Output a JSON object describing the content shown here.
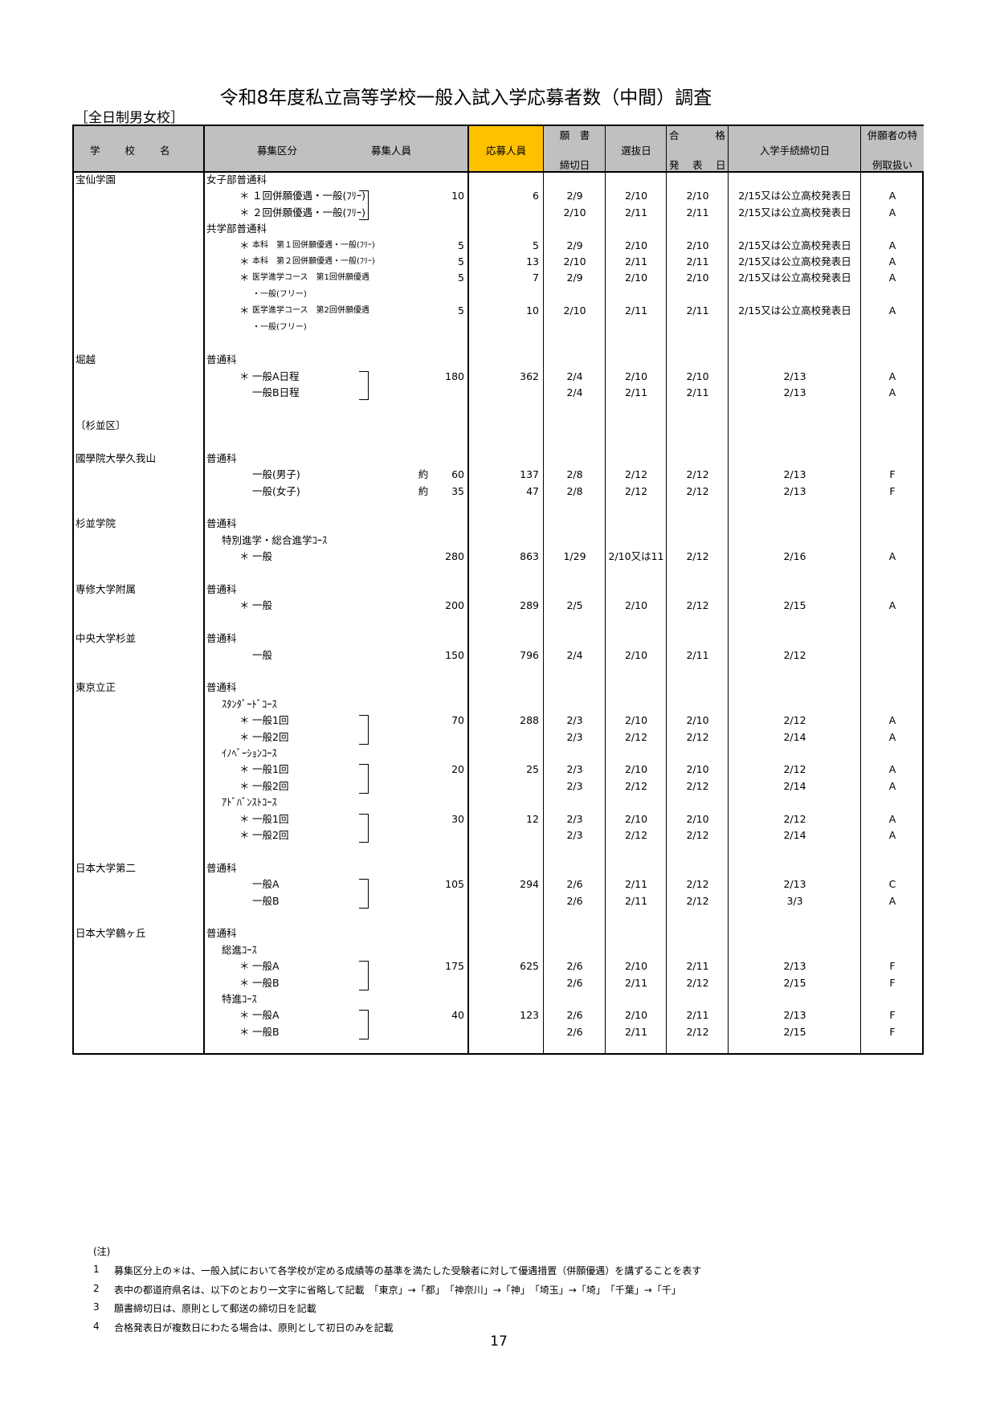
{
  "title": "令和8年度私立高等学校一般入試入学応募者数（中間）調査",
  "subtitle": "［全日制男女校］",
  "header": {
    "school": "学　　校　　名",
    "kubun": "募集区分",
    "capacity": "募集人員",
    "applicants": "応募人員",
    "deadline_top": "願　書",
    "deadline_bottom": "締切日",
    "exam": "選抜日",
    "announce_top_left": "合",
    "announce_top_right": "格",
    "announce_bottom": "発　表　日",
    "procedure": "入学手続締切日",
    "special_top": "併願者の特",
    "special_bottom": "例取扱い"
  },
  "colors": {
    "header_bg": "#c0c0c0",
    "applicants_header_bg": "#ffc000"
  },
  "rows": [
    {
      "school": "宝仙学園",
      "label": "女子部普通科",
      "t": "dept"
    },
    {
      "t": "item",
      "star": "＊",
      "label": "１回併願優遇・一般(ﾌﾘｰ)",
      "bracket": true,
      "cap": "10",
      "app": "6",
      "dl": "2/9",
      "ex": "2/10",
      "ann": "2/10",
      "proc": "2/15又は公立高校発表日",
      "sp": "A"
    },
    {
      "t": "item",
      "star": "＊",
      "label": "２回併願優遇・一般(ﾌﾘｰ)",
      "dl": "2/10",
      "ex": "2/11",
      "ann": "2/11",
      "proc": "2/15又は公立高校発表日",
      "sp": "A"
    },
    {
      "label": "共学部普通科",
      "t": "dept"
    },
    {
      "t": "item",
      "star": "＊",
      "label": "本科　第１回併願優遇・一般(ﾌﾘｰ)",
      "cap": "5",
      "app": "5",
      "dl": "2/9",
      "ex": "2/10",
      "ann": "2/10",
      "proc": "2/15又は公立高校発表日",
      "sp": "A"
    },
    {
      "t": "item",
      "star": "＊",
      "label": "本科　第２回併願優遇・一般(ﾌﾘｰ)",
      "cap": "5",
      "app": "13",
      "dl": "2/10",
      "ex": "2/11",
      "ann": "2/11",
      "proc": "2/15又は公立高校発表日",
      "sp": "A"
    },
    {
      "t": "item",
      "star": "＊",
      "label": "医学進学コース　第1回併願優遇",
      "cap": "5",
      "app": "7",
      "dl": "2/9",
      "ex": "2/10",
      "ann": "2/10",
      "proc": "2/15又は公立高校発表日",
      "sp": "A"
    },
    {
      "t": "item",
      "label": "・一般(フリー)"
    },
    {
      "t": "item",
      "star": "＊",
      "label": "医学進学コース　第2回併願優遇",
      "cap": "5",
      "app": "10",
      "dl": "2/10",
      "ex": "2/11",
      "ann": "2/11",
      "proc": "2/15又は公立高校発表日",
      "sp": "A"
    },
    {
      "t": "item",
      "label": "・一般(フリー)"
    },
    {},
    {
      "school": "堀越",
      "label": "普通科",
      "t": "dept"
    },
    {
      "t": "item",
      "star": "＊",
      "label": "一般A日程",
      "bracket": true,
      "cap": "180",
      "app": "362",
      "dl": "2/4",
      "ex": "2/10",
      "ann": "2/10",
      "proc": "2/13",
      "sp": "A"
    },
    {
      "t": "item",
      "label": "一般B日程",
      "dl": "2/4",
      "ex": "2/11",
      "ann": "2/11",
      "proc": "2/13",
      "sp": "A"
    },
    {},
    {
      "school": "〔杉並区〕"
    },
    {},
    {
      "school": "國學院大學久我山",
      "label": "普通科",
      "t": "dept"
    },
    {
      "t": "item",
      "label": "一般(男子)",
      "approx": "約",
      "cap": "60",
      "app": "137",
      "dl": "2/8",
      "ex": "2/12",
      "ann": "2/12",
      "proc": "2/13",
      "sp": "F"
    },
    {
      "t": "item",
      "label": "一般(女子)",
      "approx": "約",
      "cap": "35",
      "app": "47",
      "dl": "2/8",
      "ex": "2/12",
      "ann": "2/12",
      "proc": "2/13",
      "sp": "F"
    },
    {},
    {
      "school": "杉並学院",
      "label": "普通科",
      "t": "dept"
    },
    {
      "t": "course",
      "label": "特別進学・総合進学ｺｰｽ"
    },
    {
      "t": "item",
      "star": "＊",
      "label": "一般",
      "cap": "280",
      "app": "863",
      "dl": "1/29",
      "ex": "2/10又は11",
      "ann": "2/12",
      "proc": "2/16",
      "sp": "A"
    },
    {},
    {
      "school": "専修大学附属",
      "label": "普通科",
      "t": "dept"
    },
    {
      "t": "item",
      "star": "＊",
      "label": "一般",
      "cap": "200",
      "app": "289",
      "dl": "2/5",
      "ex": "2/10",
      "ann": "2/12",
      "proc": "2/15",
      "sp": "A"
    },
    {},
    {
      "school": "中央大学杉並",
      "label": "普通科",
      "t": "dept"
    },
    {
      "t": "item",
      "label": "一般",
      "cap": "150",
      "app": "796",
      "dl": "2/4",
      "ex": "2/10",
      "ann": "2/11",
      "proc": "2/12"
    },
    {},
    {
      "school": "東京立正",
      "label": "普通科",
      "t": "dept"
    },
    {
      "t": "course",
      "label": "ｽﾀﾝﾀﾞｰﾄﾞｺｰｽ"
    },
    {
      "t": "item",
      "star": "＊",
      "label": "一般1回",
      "bracket": true,
      "cap": "70",
      "app": "288",
      "dl": "2/3",
      "ex": "2/10",
      "ann": "2/10",
      "proc": "2/12",
      "sp": "A"
    },
    {
      "t": "item",
      "star": "＊",
      "label": "一般2回",
      "dl": "2/3",
      "ex": "2/12",
      "ann": "2/12",
      "proc": "2/14",
      "sp": "A"
    },
    {
      "t": "course",
      "label": "ｲﾉﾍﾞｰｼｮﾝｺｰｽ"
    },
    {
      "t": "item",
      "star": "＊",
      "label": "一般1回",
      "bracket": true,
      "cap": "20",
      "app": "25",
      "dl": "2/3",
      "ex": "2/10",
      "ann": "2/10",
      "proc": "2/12",
      "sp": "A"
    },
    {
      "t": "item",
      "star": "＊",
      "label": "一般2回",
      "dl": "2/3",
      "ex": "2/12",
      "ann": "2/12",
      "proc": "2/14",
      "sp": "A"
    },
    {
      "t": "course",
      "label": "ｱﾄﾞﾊﾞﾝｽﾄｺｰｽ"
    },
    {
      "t": "item",
      "star": "＊",
      "label": "一般1回",
      "bracket": true,
      "cap": "30",
      "app": "12",
      "dl": "2/3",
      "ex": "2/10",
      "ann": "2/10",
      "proc": "2/12",
      "sp": "A"
    },
    {
      "t": "item",
      "star": "＊",
      "label": "一般2回",
      "dl": "2/3",
      "ex": "2/12",
      "ann": "2/12",
      "proc": "2/14",
      "sp": "A"
    },
    {},
    {
      "school": "日本大学第二",
      "label": "普通科",
      "t": "dept"
    },
    {
      "t": "item",
      "label": "一般A",
      "bracket": true,
      "cap": "105",
      "app": "294",
      "dl": "2/6",
      "ex": "2/11",
      "ann": "2/12",
      "proc": "2/13",
      "sp": "C"
    },
    {
      "t": "item",
      "label": "一般B",
      "dl": "2/6",
      "ex": "2/11",
      "ann": "2/12",
      "proc": "3/3",
      "sp": "A"
    },
    {},
    {
      "school": "日本大学鶴ヶ丘",
      "label": "普通科",
      "t": "dept"
    },
    {
      "t": "course",
      "label": "総進ｺｰｽ"
    },
    {
      "t": "item",
      "star": "＊",
      "label": "一般A",
      "bracket": true,
      "cap": "175",
      "app": "625",
      "dl": "2/6",
      "ex": "2/10",
      "ann": "2/11",
      "proc": "2/13",
      "sp": "F"
    },
    {
      "t": "item",
      "star": "＊",
      "label": "一般B",
      "dl": "2/6",
      "ex": "2/11",
      "ann": "2/12",
      "proc": "2/15",
      "sp": "F"
    },
    {
      "t": "course",
      "label": "特進ｺｰｽ"
    },
    {
      "t": "item",
      "star": "＊",
      "label": "一般A",
      "bracket": true,
      "cap": "40",
      "app": "123",
      "dl": "2/6",
      "ex": "2/10",
      "ann": "2/11",
      "proc": "2/13",
      "sp": "F"
    },
    {
      "t": "item",
      "star": "＊",
      "label": "一般B",
      "dl": "2/6",
      "ex": "2/11",
      "ann": "2/12",
      "proc": "2/15",
      "sp": "F"
    }
  ],
  "notes": {
    "heading": "(注)",
    "items": [
      {
        "num": "1",
        "text": "募集区分上の＊は、一般入試において各学校が定める成績等の基準を満たした受験者に対して優遇措置（併願優遇）を講ずることを表す"
      },
      {
        "num": "2",
        "text": "表中の都道府県名は、以下のとおり一文字に省略して記載　「東京」→「都」　「神奈川」→「神」　「埼玉」→「埼」　「千葉」→「千」"
      },
      {
        "num": "3",
        "text": "願書締切日は、原則として郵送の締切日を記載"
      },
      {
        "num": "4",
        "text": "合格発表日が複数日にわたる場合は、原則として初日のみを記載"
      }
    ]
  },
  "page_number": "17"
}
